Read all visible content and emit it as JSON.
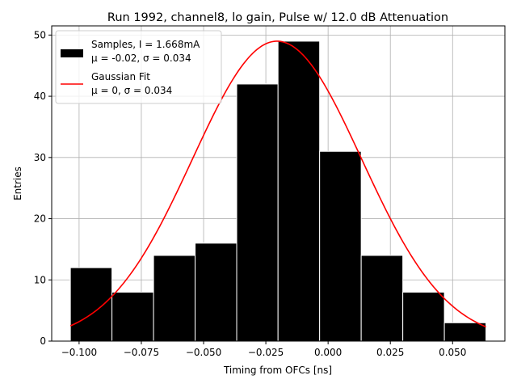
{
  "chart_data": {
    "type": "bar",
    "title": "Run 1992, channel8, lo gain, Pulse w/ 12.0 dB Attenuation",
    "xlabel": "Timing from OFCs [ns]",
    "ylabel": "Entries",
    "xlim": [
      -0.111,
      0.071
    ],
    "ylim": [
      0,
      51.5
    ],
    "grid": true,
    "x_ticks": [
      -0.1,
      -0.075,
      -0.05,
      -0.025,
      0.0,
      0.025,
      0.05
    ],
    "x_tick_labels": [
      "−0.100",
      "−0.075",
      "−0.050",
      "−0.025",
      "0.000",
      "0.025",
      "0.050"
    ],
    "y_ticks": [
      0,
      10,
      20,
      30,
      40,
      50
    ],
    "y_tick_labels": [
      "0",
      "10",
      "20",
      "30",
      "40",
      "50"
    ],
    "legend": {
      "position": "top-left",
      "entries": [
        {
          "line1": "Samples, I = 1.668mA",
          "line2": "μ = -0.02, σ = 0.034"
        },
        {
          "line1": "Gaussian Fit",
          "line2": "μ = 0, σ = 0.034"
        }
      ]
    },
    "histogram": {
      "name": "Samples, I = 1.668mA",
      "color": "#000000",
      "bin_edges": [
        -0.1035,
        -0.0868,
        -0.0701,
        -0.0534,
        -0.0367,
        -0.0201,
        -0.0034,
        0.0133,
        0.03,
        0.0467,
        0.0634
      ],
      "values": [
        12,
        8,
        14,
        16,
        42,
        49,
        31,
        14,
        8,
        3
      ]
    },
    "fit": {
      "name": "Gaussian Fit",
      "color": "#ff0000",
      "mu": -0.0205,
      "sigma": 0.034,
      "amplitude": 49,
      "x_range": [
        -0.1035,
        0.0634
      ]
    }
  }
}
